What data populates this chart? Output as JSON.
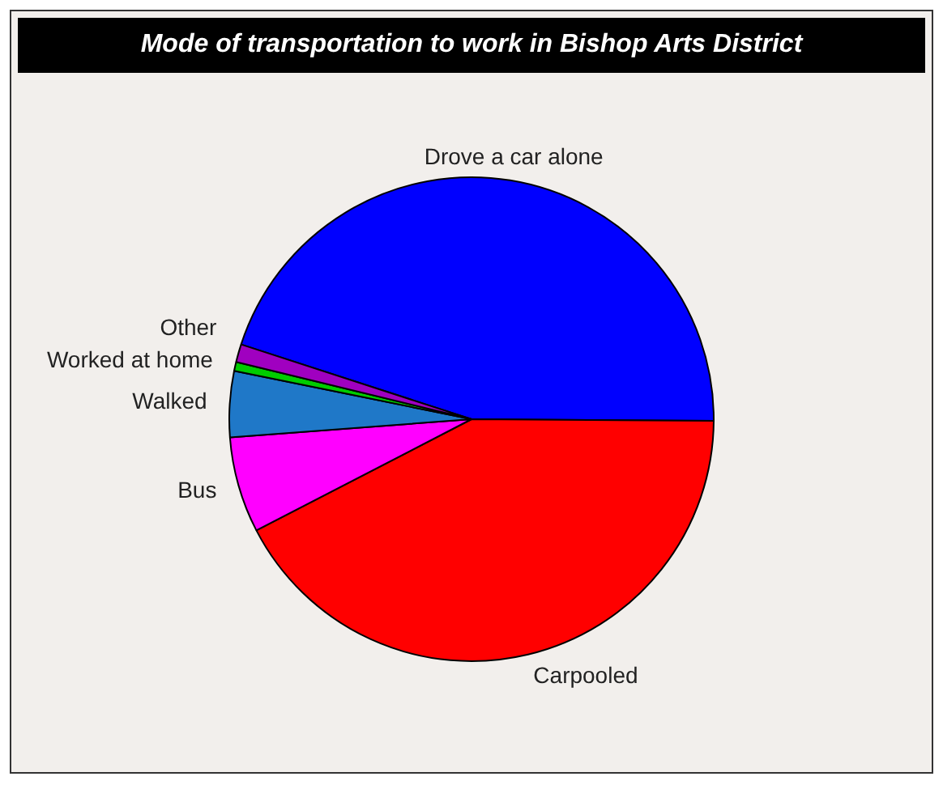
{
  "chart_data": {
    "type": "pie",
    "title": "Mode of transportation to work in Bishop Arts District",
    "categories": [
      "Drove a car alone",
      "Carpooled",
      "Bus",
      "Walked",
      "Worked at home",
      "Other"
    ],
    "values": [
      45.1,
      42.3,
      6.4,
      4.4,
      0.6,
      1.2
    ],
    "colors": [
      "#0000ff",
      "#ff0000",
      "#ff00ff",
      "#1f78c8",
      "#00cc00",
      "#a000c0"
    ],
    "legend": false
  }
}
